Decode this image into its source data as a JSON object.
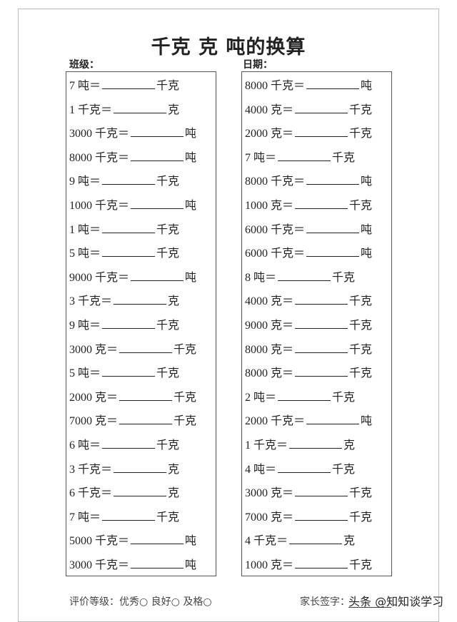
{
  "header": {
    "title": "千克 克 吨的换算",
    "class_label": "班级：",
    "date_label": "日期："
  },
  "columns": [
    {
      "problems": [
        {
          "given": "7 吨＝",
          "unit": "千克"
        },
        {
          "given": "1 千克＝",
          "unit": "克"
        },
        {
          "given": "3000 千克＝",
          "unit": "吨"
        },
        {
          "given": "8000 千克＝",
          "unit": "吨"
        },
        {
          "given": "9 吨＝",
          "unit": "千克"
        },
        {
          "given": "1000 千克＝",
          "unit": "吨"
        },
        {
          "given": "1 吨＝",
          "unit": "千克"
        },
        {
          "given": "5 吨＝",
          "unit": "千克"
        },
        {
          "given": "9000 千克＝",
          "unit": "吨"
        },
        {
          "given": "3 千克＝",
          "unit": "克"
        },
        {
          "given": "9 吨＝",
          "unit": "千克"
        },
        {
          "given": "3000 克＝",
          "unit": "千克"
        },
        {
          "given": "5 吨＝",
          "unit": "千克"
        },
        {
          "given": "2000 克＝",
          "unit": "千克"
        },
        {
          "given": "7000 克＝",
          "unit": "千克"
        },
        {
          "given": "6 吨＝",
          "unit": "千克"
        },
        {
          "given": "3 千克＝",
          "unit": "克"
        },
        {
          "given": "6 千克＝",
          "unit": "克"
        },
        {
          "given": "7 吨＝",
          "unit": "千克"
        },
        {
          "given": "5000 千克＝",
          "unit": "吨"
        },
        {
          "given": "3000 千克＝",
          "unit": "吨"
        }
      ]
    },
    {
      "problems": [
        {
          "given": "8000 千克＝",
          "unit": "吨"
        },
        {
          "given": "4000 克＝",
          "unit": "千克"
        },
        {
          "given": "2000 克＝",
          "unit": "千克"
        },
        {
          "given": "7 吨＝",
          "unit": "千克"
        },
        {
          "given": "8000 千克＝",
          "unit": "吨"
        },
        {
          "given": "1000 克＝",
          "unit": "千克"
        },
        {
          "given": "6000 千克＝",
          "unit": "吨"
        },
        {
          "given": "6000 千克＝",
          "unit": "吨"
        },
        {
          "given": "8 吨＝",
          "unit": "千克"
        },
        {
          "given": "4000 克＝",
          "unit": "千克"
        },
        {
          "given": "9000 克＝",
          "unit": "千克"
        },
        {
          "given": "8000 克＝",
          "unit": "千克"
        },
        {
          "given": "8000 克＝",
          "unit": "千克"
        },
        {
          "given": "2 吨＝",
          "unit": "千克"
        },
        {
          "given": "2000 千克＝",
          "unit": "吨"
        },
        {
          "given": "1 千克＝",
          "unit": "克"
        },
        {
          "given": "4 吨＝",
          "unit": "千克"
        },
        {
          "given": "3000 克＝",
          "unit": "千克"
        },
        {
          "given": "7000 克＝",
          "unit": "千克"
        },
        {
          "given": "4 千克＝",
          "unit": "克"
        },
        {
          "given": "1000 克＝",
          "unit": "千克"
        }
      ]
    }
  ],
  "footer": {
    "rating": "评价等级：优秀○ 良好○ 及格○",
    "signature": "家长签字：",
    "watermark": "头条 @知知谈学习"
  }
}
